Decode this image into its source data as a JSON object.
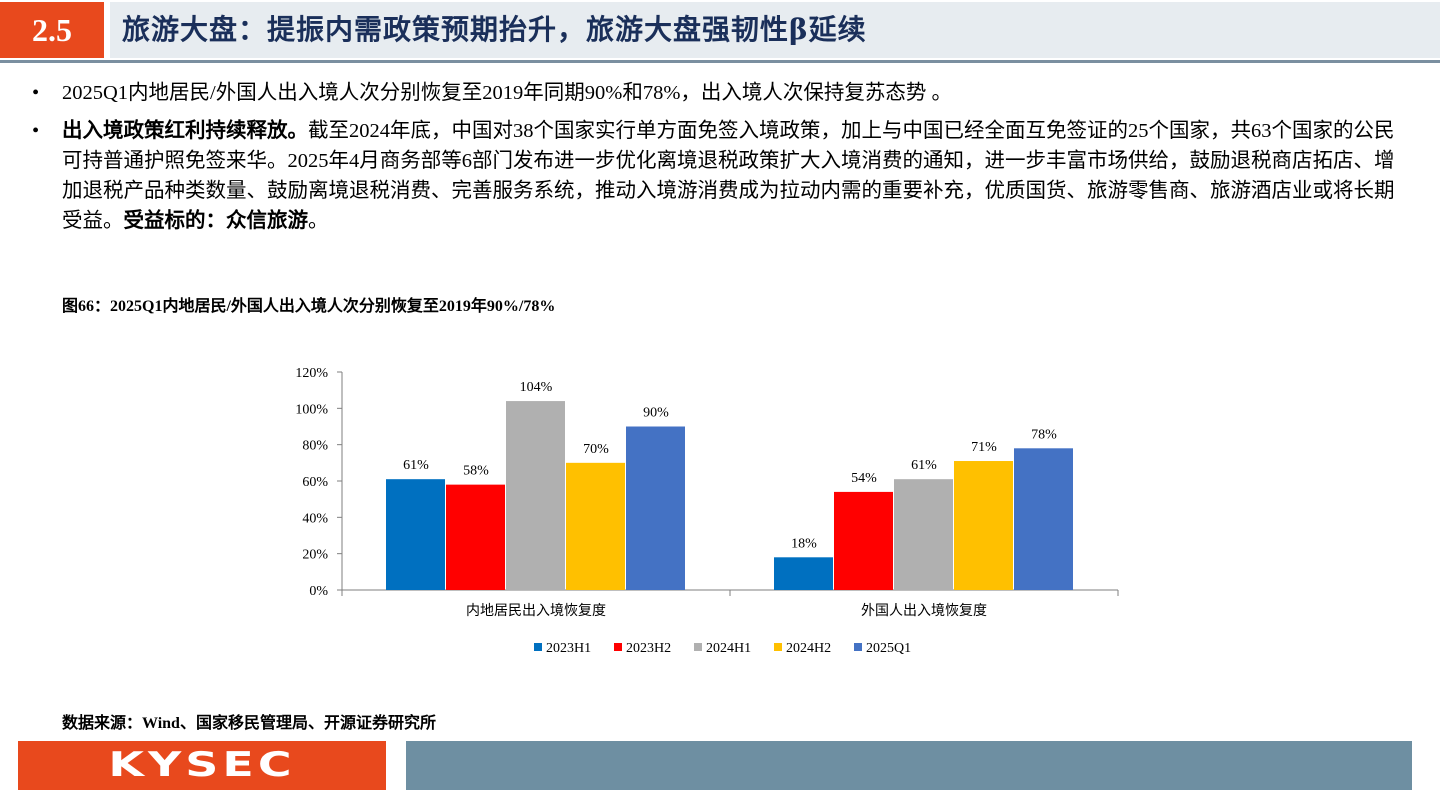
{
  "header": {
    "section_number": "2.5",
    "title": "旅游大盘：提振内需政策预期抬升，旅游大盘强韧性β延续"
  },
  "bullets": [
    {
      "marker": "•",
      "bold": "",
      "text": "2025Q1内地居民/外国人出入境人次分别恢复至2019年同期90%和78%，出入境人次保持复苏态势 。",
      "bold_tail": "",
      "tail": ""
    },
    {
      "marker": "•",
      "bold": "出入境政策红利持续释放。",
      "text": "截至2024年底，中国对38个国家实行单方面免签入境政策，加上与中国已经全面互免签证的25个国家，共63个国家的公民可持普通护照免签来华。2025年4月商务部等6部门发布进一步优化离境退税政策扩大入境消费的通知，进一步丰富市场供给，鼓励退税商店拓店、增加退税产品种类数量、鼓励离境退税消费、完善服务系统，推动入境游消费成为拉动内需的重要补充，优质国货、旅游零售商、旅游酒店业或将长期受益。",
      "bold_tail": "受益标的：众信旅游",
      "tail": "。"
    }
  ],
  "figure_title": "图66：2025Q1内地居民/外国人出入境人次分别恢复至2019年90%/78%",
  "chart_data": {
    "type": "bar",
    "categories": [
      "内地居民出入境恢复度",
      "外国人出入境恢复度"
    ],
    "series": [
      {
        "name": "2023H1",
        "color": "#0070c0",
        "values": [
          61,
          18
        ]
      },
      {
        "name": "2023H2",
        "color": "#ff0000",
        "values": [
          58,
          54
        ]
      },
      {
        "name": "2024H1",
        "color": "#b0b0b0",
        "values": [
          104,
          61
        ]
      },
      {
        "name": "2024H2",
        "color": "#ffc000",
        "values": [
          70,
          71
        ]
      },
      {
        "name": "2025Q1",
        "color": "#4472c4",
        "values": [
          90,
          78
        ]
      }
    ],
    "y_ticks": [
      "0%",
      "20%",
      "40%",
      "60%",
      "80%",
      "100%",
      "120%"
    ],
    "ylim": [
      0,
      120
    ],
    "data_label_suffix": "%",
    "grid": false,
    "legend_position": "bottom",
    "title": "",
    "xlabel": "",
    "ylabel": ""
  },
  "source": "数据来源：Wind、国家移民管理局、开源证券研究所",
  "footer": {
    "logo_text": "KYSEC"
  },
  "colors": {
    "accent": "#e8491d",
    "title_text": "#1a2f5a",
    "header_band": "#e7ecf0",
    "footer_bar": "#6e8fa2"
  }
}
